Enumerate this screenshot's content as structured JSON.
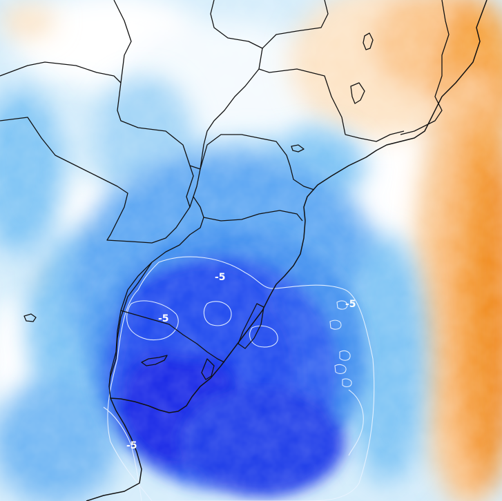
{
  "map": {
    "contour_labels": [
      {
        "id": "label-center",
        "text": "-5"
      },
      {
        "id": "label-west",
        "text": "-5"
      },
      {
        "id": "label-east",
        "text": "-5"
      },
      {
        "id": "label-southwest",
        "text": "-5"
      }
    ],
    "colors": {
      "deep_blue": "#1428e6",
      "blue": "#2a5cf0",
      "mid_blue": "#3f8fef",
      "light_blue": "#7cc3f4",
      "pale_blue": "#c7e9fb",
      "white": "#ffffff",
      "pale_orange": "#fde3c4",
      "light_orange": "#fbc58a",
      "orange": "#f6a23e",
      "deep_orange": "#f08a1c",
      "border": "#111111",
      "isoline": "#e8f2ff"
    }
  }
}
